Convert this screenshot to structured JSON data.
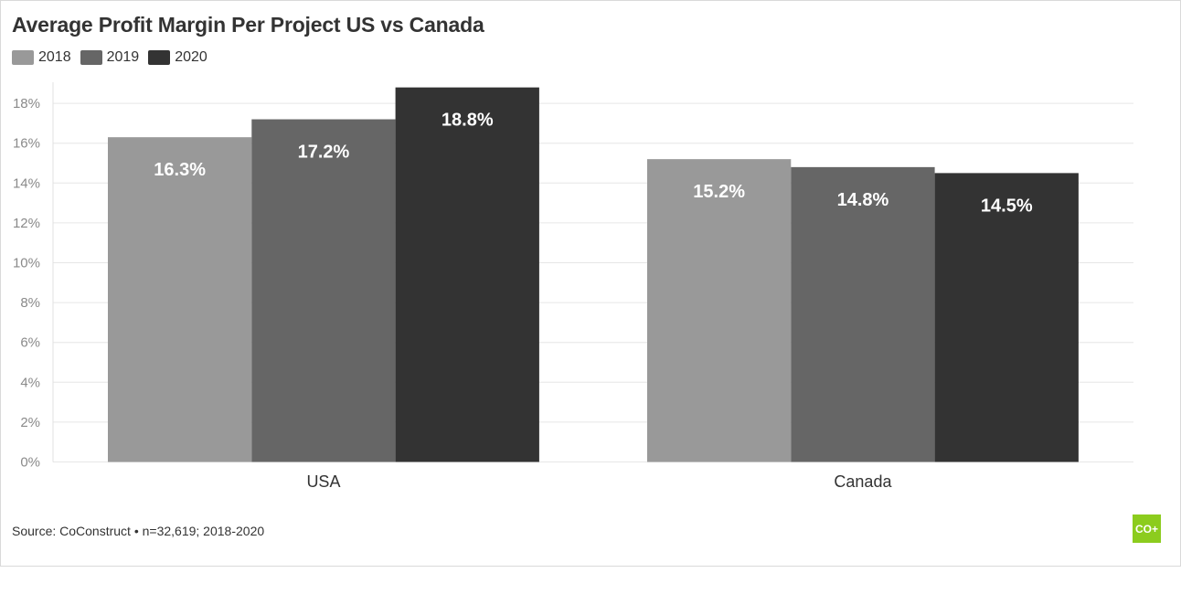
{
  "title": "Average Profit Margin Per Project US vs Canada",
  "source": "Source: CoConstruct • n=32,619; 2018-2020",
  "logo_text": "CO+",
  "colors": {
    "2018": "#999999",
    "2019": "#666666",
    "2020": "#333333",
    "grid": "#e6e6e6",
    "logo": "#8ccc1e"
  },
  "chart_data": {
    "type": "bar",
    "title": "Average Profit Margin Per Project US vs Canada",
    "categories": [
      "USA",
      "Canada"
    ],
    "series": [
      {
        "name": "2018",
        "values": [
          16.3,
          15.2
        ],
        "labels": [
          "16.3%",
          "15.2%"
        ],
        "color": "#999999"
      },
      {
        "name": "2019",
        "values": [
          17.2,
          14.8
        ],
        "labels": [
          "17.2%",
          "14.8%"
        ],
        "color": "#666666"
      },
      {
        "name": "2020",
        "values": [
          18.8,
          14.5
        ],
        "labels": [
          "18.8%",
          "14.5%"
        ],
        "color": "#333333"
      }
    ],
    "y_ticks": [
      "0%",
      "2%",
      "4%",
      "6%",
      "8%",
      "10%",
      "12%",
      "14%",
      "16%",
      "18%"
    ],
    "ylim": [
      0,
      19
    ],
    "xlabel": "",
    "ylabel": "",
    "grid": true,
    "legend": "top-left"
  }
}
